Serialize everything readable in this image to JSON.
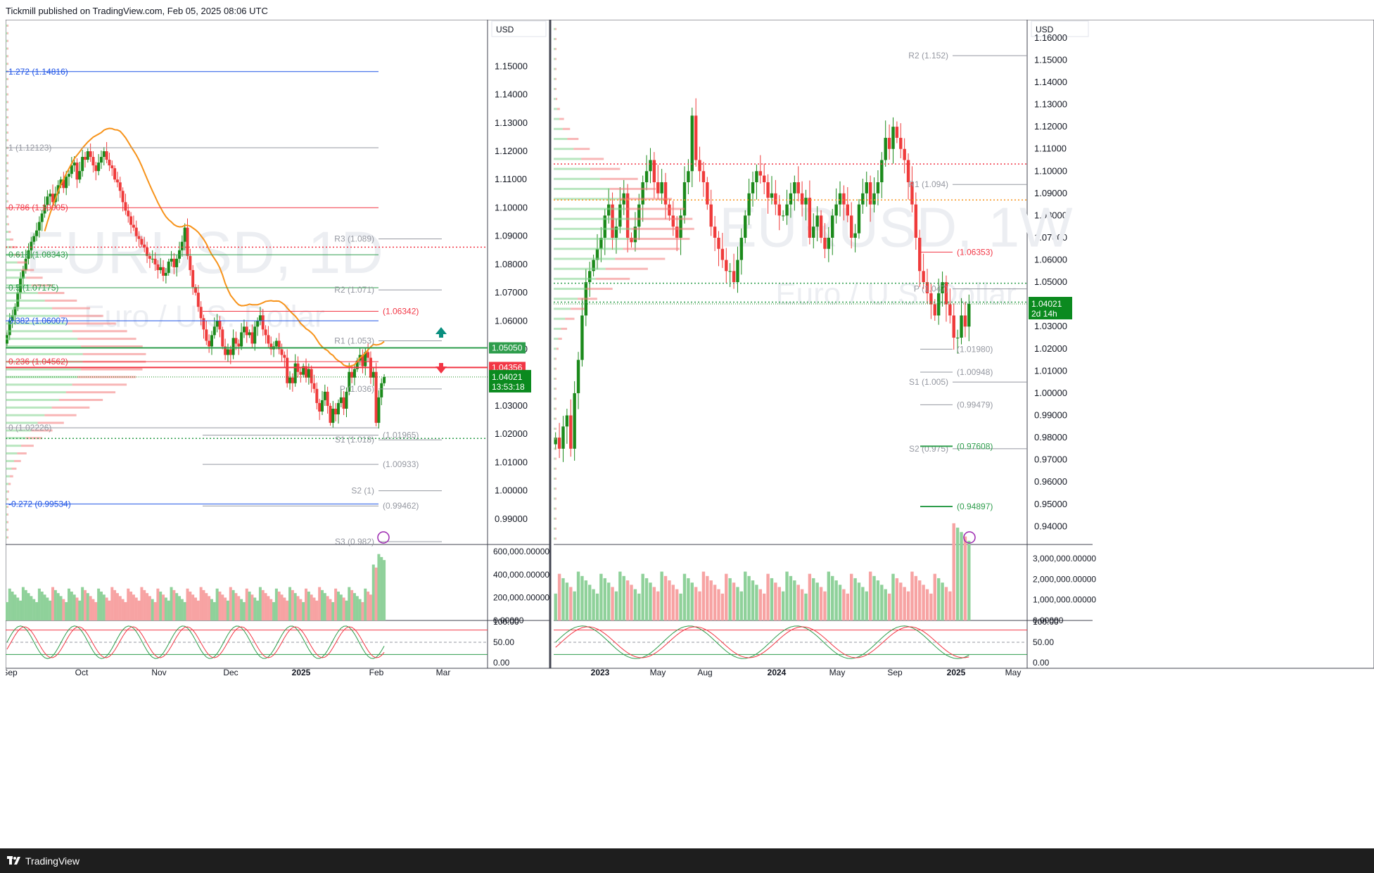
{
  "header": {
    "published": "Tickmill published on TradingView.com, Feb 05, 2025 08:06 UTC"
  },
  "footer": {
    "brand": "TradingView"
  },
  "colors": {
    "up": "#1b8a1b",
    "down": "#ef3b3b",
    "grid": "#e6e6e6",
    "label_green": "#2e9d4c",
    "label_red": "#f23645",
    "fib_blue": "#1e53e5"
  },
  "chart_data": [
    {
      "type": "candlestick",
      "symbol": "EURUSD, 1D",
      "description": "Euro / U.S. Dollar",
      "currency": "USD",
      "price_axis": {
        "ticks": [
          "1.15000",
          "1.14000",
          "1.13000",
          "1.12000",
          "1.11000",
          "1.10000",
          "1.09000",
          "1.08000",
          "1.07000",
          "1.06000",
          "1.05000",
          "1.04000",
          "1.03000",
          "1.02000",
          "1.01000",
          "1.00000",
          "0.99000"
        ],
        "range": [
          0.9815,
          1.1665
        ]
      },
      "time_axis": {
        "labels": [
          "Sep",
          "Oct",
          "Nov",
          "Dec",
          "2025",
          "Feb",
          "Mar"
        ]
      },
      "last_price": "1.04021",
      "countdown": "13:53:18",
      "price_tags": [
        {
          "value": "1.05050",
          "color": "green"
        },
        {
          "value": "1.04356",
          "color": "red"
        }
      ],
      "fib_labels": [
        {
          "text": "1.272 (1.14816)",
          "value": 1.14816,
          "color": "blue"
        },
        {
          "text": "1 (1.12123)",
          "value": 1.12123,
          "color": "grey"
        },
        {
          "text": "0.786 (1.10005)",
          "value": 1.10005,
          "color": "red"
        },
        {
          "text": "0.618 (1.08343)",
          "value": 1.08343,
          "color": "green"
        },
        {
          "text": "0.5 (1.07175)",
          "value": 1.07175,
          "color": "green"
        },
        {
          "text": "0.382 (1.06007)",
          "value": 1.06007,
          "color": "blue"
        },
        {
          "text": "0.236 (1.04562)",
          "value": 1.04562,
          "color": "red"
        },
        {
          "text": "0 (1.02226)",
          "value": 1.02226,
          "color": "grey"
        },
        {
          "text": "-0.272 (0.99534)",
          "value": 0.99534,
          "color": "blue"
        }
      ],
      "pivots": [
        {
          "text": "R3 (1.089)",
          "value": 1.089
        },
        {
          "text": "R2 (1.071)",
          "value": 1.071
        },
        {
          "text": "R1 (1.053)",
          "value": 1.053
        },
        {
          "text": "P (1.036)",
          "value": 1.036
        },
        {
          "text": "S1 (1.018)",
          "value": 1.018
        },
        {
          "text": "S2 (1)",
          "value": 1.0
        },
        {
          "text": "S3 (0.982)",
          "value": 0.982
        }
      ],
      "level_labels": [
        {
          "text": "(1.06342)",
          "value": 1.06342,
          "color": "red"
        },
        {
          "text": "(1.01965)",
          "value": 1.01965,
          "color": "grey"
        },
        {
          "text": "(1.00933)",
          "value": 1.00933,
          "color": "grey"
        },
        {
          "text": "(0.99462)",
          "value": 0.99462,
          "color": "grey"
        }
      ],
      "volume_axis": {
        "ticks": [
          "600,000.00000",
          "400,000.00000",
          "200,000.00000",
          "0.00000"
        ]
      },
      "oscillator_axis": {
        "ticks": [
          "100.00",
          "50.00",
          "0.00"
        ]
      },
      "closes": [
        1.055,
        1.06,
        1.062,
        1.065,
        1.07,
        1.075,
        1.078,
        1.082,
        1.085,
        1.088,
        1.09,
        1.092,
        1.095,
        1.098,
        1.101,
        1.104,
        1.105,
        1.102,
        1.105,
        1.108,
        1.11,
        1.107,
        1.111,
        1.112,
        1.115,
        1.116,
        1.11,
        1.113,
        1.118,
        1.117,
        1.12,
        1.118,
        1.115,
        1.113,
        1.116,
        1.118,
        1.12,
        1.117,
        1.115,
        1.114,
        1.11,
        1.109,
        1.106,
        1.102,
        1.099,
        1.097,
        1.094,
        1.093,
        1.09,
        1.089,
        1.087,
        1.086,
        1.083,
        1.082,
        1.082,
        1.08,
        1.078,
        1.079,
        1.076,
        1.077,
        1.081,
        1.082,
        1.079,
        1.082,
        1.085,
        1.088,
        1.093,
        1.083,
        1.078,
        1.072,
        1.07,
        1.065,
        1.061,
        1.057,
        1.053,
        1.051,
        1.055,
        1.058,
        1.06,
        1.057,
        1.051,
        1.048,
        1.05,
        1.048,
        1.054,
        1.052,
        1.051,
        1.056,
        1.058,
        1.055,
        1.056,
        1.052,
        1.058,
        1.06,
        1.062,
        1.057,
        1.055,
        1.052,
        1.05,
        1.051,
        1.053,
        1.05,
        1.048,
        1.047,
        1.038,
        1.04,
        1.038,
        1.045,
        1.042,
        1.041,
        1.044,
        1.04,
        1.043,
        1.038,
        1.036,
        1.031,
        1.028,
        1.032,
        1.035,
        1.03,
        1.024,
        1.029,
        1.027,
        1.031,
        1.033,
        1.029,
        1.035,
        1.042,
        1.04,
        1.043,
        1.046,
        1.048,
        1.044,
        1.049,
        1.047,
        1.04,
        1.042,
        1.024,
        1.033,
        1.038,
        1.0402
      ]
    },
    {
      "type": "candlestick",
      "symbol": "EURUSD, 1W",
      "description": "Euro / U.S. Dollar",
      "currency": "USD",
      "price_axis": {
        "ticks": [
          "1.16000",
          "1.15000",
          "1.14000",
          "1.13000",
          "1.12000",
          "1.11000",
          "1.10000",
          "1.09000",
          "1.08000",
          "1.07000",
          "1.06000",
          "1.05000",
          "1.04000",
          "1.03000",
          "1.02000",
          "1.01000",
          "1.00000",
          "0.99000",
          "0.98000",
          "0.97000",
          "0.96000",
          "0.95000",
          "0.94000"
        ],
        "range": [
          0.9325,
          1.1682
        ]
      },
      "time_axis": {
        "labels": [
          "2023",
          "May",
          "Aug",
          "2024",
          "May",
          "Sep",
          "2025",
          "May"
        ]
      },
      "last_price": "1.04021",
      "countdown": "2d 14h",
      "pivots": [
        {
          "text": "R2 (1.152)",
          "value": 1.152
        },
        {
          "text": "R1 (1.094)",
          "value": 1.094
        },
        {
          "text": "P (1.047)",
          "value": 1.047
        },
        {
          "text": "S1 (1.005)",
          "value": 1.005
        },
        {
          "text": "S2 (0.975)",
          "value": 0.975
        }
      ],
      "level_labels": [
        {
          "text": "(1.06353)",
          "value": 1.06353,
          "color": "red"
        },
        {
          "text": "(1.01980)",
          "value": 1.0198,
          "color": "grey"
        },
        {
          "text": "(1.00948)",
          "value": 1.00948,
          "color": "grey"
        },
        {
          "text": "(0.99479)",
          "value": 0.99479,
          "color": "grey"
        },
        {
          "text": "(0.97608)",
          "value": 0.97608,
          "color": "green"
        },
        {
          "text": "(0.94897)",
          "value": 0.94897,
          "color": "green"
        }
      ],
      "volume_axis": {
        "ticks": [
          "3,000,000.00000",
          "2,000,000.00000",
          "1,000,000.00000",
          "0.00000"
        ]
      },
      "oscillator_axis": {
        "ticks": [
          "100.00",
          "50.00",
          "0.00"
        ]
      },
      "closes": [
        0.98,
        0.975,
        0.985,
        0.99,
        0.975,
        1.0,
        1.015,
        1.035,
        1.05,
        1.055,
        1.06,
        1.065,
        1.07,
        1.08,
        1.085,
        1.07,
        1.075,
        1.085,
        1.09,
        1.07,
        1.068,
        1.075,
        1.085,
        1.095,
        1.1,
        1.105,
        1.095,
        1.09,
        1.095,
        1.085,
        1.08,
        1.075,
        1.07,
        1.08,
        1.095,
        1.1,
        1.125,
        1.105,
        1.1,
        1.095,
        1.085,
        1.075,
        1.07,
        1.065,
        1.06,
        1.055,
        1.055,
        1.05,
        1.06,
        1.07,
        1.08,
        1.09,
        1.095,
        1.1,
        1.098,
        1.095,
        1.088,
        1.09,
        1.085,
        1.08,
        1.08,
        1.085,
        1.09,
        1.095,
        1.09,
        1.085,
        1.088,
        1.07,
        1.075,
        1.08,
        1.07,
        1.065,
        1.07,
        1.08,
        1.085,
        1.09,
        1.085,
        1.08,
        1.07,
        1.072,
        1.085,
        1.09,
        1.095,
        1.085,
        1.09,
        1.095,
        1.105,
        1.115,
        1.11,
        1.12,
        1.115,
        1.11,
        1.105,
        1.095,
        1.085,
        1.07,
        1.055,
        1.05,
        1.045,
        1.04,
        1.035,
        1.045,
        1.05,
        1.04,
        1.035,
        1.025,
        1.025,
        1.035,
        1.03,
        1.0402
      ]
    }
  ]
}
